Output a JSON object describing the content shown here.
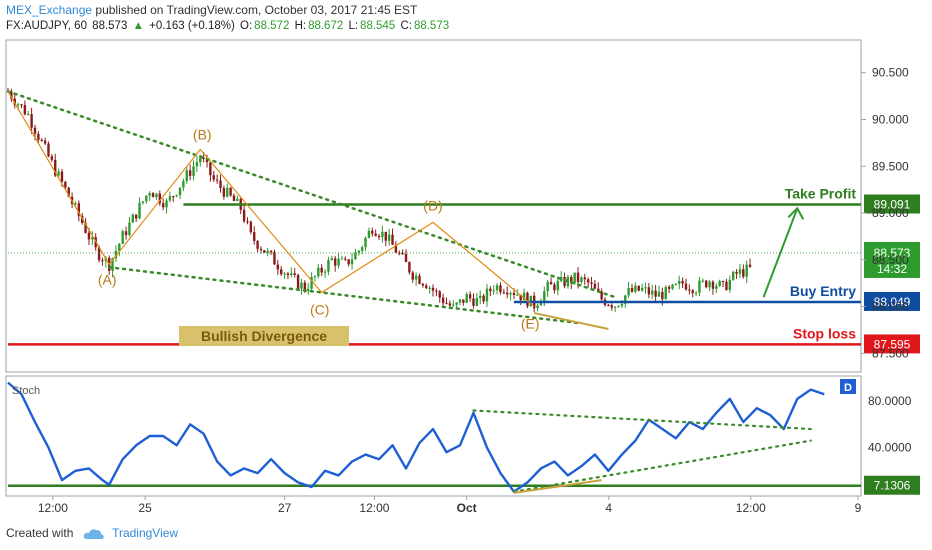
{
  "header": {
    "author": "MEX_Exchange",
    "published": "published on TradingView.com, October 03, 2017 21:45 EST",
    "symbol": "FX:AUDJPY, 60",
    "last": "88.573",
    "change": "+0.163 (+0.18%)",
    "open_label": "O:",
    "open": "88.572",
    "high_label": "H:",
    "high": "88.672",
    "low_label": "L:",
    "low": "88.545",
    "close_label": "C:",
    "close": "88.573"
  },
  "footer": {
    "created_with": "Created with",
    "brand": "TradingView"
  },
  "colors": {
    "up": "#2e9b2e",
    "down": "#8b1a1a",
    "green": "#2e7d1f",
    "blue": "#0f4da1",
    "red": "#e0161b",
    "orange": "#e08a12",
    "stoch": "#1f5fd6",
    "price_tag": "#2e9b2e"
  },
  "chart_data": [
    {
      "type": "candlestick",
      "title": "FX:AUDJPY, 60",
      "ylim": [
        87.3,
        90.85
      ],
      "y_ticks": [
        "90.500",
        "90.000",
        "89.500",
        "89.000",
        "88.500",
        "88.000",
        "87.500"
      ],
      "x_ticks": [
        "12:00",
        "25",
        "27",
        "12:00",
        "Oct",
        "4",
        "12:00",
        "9"
      ],
      "close_path": [
        [
          0,
          90.3
        ],
        [
          6,
          90.05
        ],
        [
          12,
          89.6
        ],
        [
          17,
          89.25
        ],
        [
          22,
          88.9
        ],
        [
          26,
          88.6
        ],
        [
          30,
          88.45
        ],
        [
          34,
          88.75
        ],
        [
          38,
          89.0
        ],
        [
          42,
          89.25
        ],
        [
          47,
          89.1
        ],
        [
          52,
          89.35
        ],
        [
          57,
          89.6
        ],
        [
          61,
          89.35
        ],
        [
          65,
          89.2
        ],
        [
          69,
          89.05
        ],
        [
          72,
          88.75
        ],
        [
          76,
          88.6
        ],
        [
          80,
          88.45
        ],
        [
          84,
          88.3
        ],
        [
          88,
          88.2
        ],
        [
          92,
          88.35
        ],
        [
          96,
          88.5
        ],
        [
          100,
          88.45
        ],
        [
          104,
          88.6
        ],
        [
          108,
          88.85
        ],
        [
          112,
          88.75
        ],
        [
          116,
          88.55
        ],
        [
          120,
          88.35
        ],
        [
          124,
          88.25
        ],
        [
          128,
          88.1
        ],
        [
          132,
          87.98
        ],
        [
          136,
          88.1
        ],
        [
          140,
          88.05
        ],
        [
          144,
          88.22
        ],
        [
          148,
          88.2
        ],
        [
          152,
          88.12
        ],
        [
          156,
          88.02
        ],
        [
          160,
          88.2
        ],
        [
          164,
          88.25
        ],
        [
          168,
          88.3
        ],
        [
          172,
          88.25
        ],
        [
          176,
          88.08
        ],
        [
          180,
          88.02
        ],
        [
          184,
          88.15
        ],
        [
          188,
          88.18
        ],
        [
          192,
          88.12
        ],
        [
          196,
          88.15
        ],
        [
          200,
          88.25
        ],
        [
          204,
          88.2
        ],
        [
          208,
          88.28
        ],
        [
          212,
          88.2
        ],
        [
          216,
          88.35
        ],
        [
          220,
          88.4
        ]
      ],
      "levels": [
        {
          "label": "Take Profit",
          "value": 89.091,
          "color": "#2e7d1f"
        },
        {
          "label": "Buy Entry",
          "value": 88.049,
          "color": "#0f4da1"
        },
        {
          "label": "Stop loss",
          "value": 87.595,
          "color": "#e0161b"
        }
      ],
      "current": {
        "value": "88.573",
        "countdown": "14:32"
      },
      "waves": [
        {
          "label": "(A)",
          "t": 30,
          "value": 88.45
        },
        {
          "label": "(B)",
          "t": 57,
          "value": 89.68
        },
        {
          "label": "(C)",
          "t": 93,
          "value": 88.15
        },
        {
          "label": "(D)",
          "t": 126,
          "value": 88.9
        },
        {
          "label": "(E)",
          "t": 156,
          "value": 88.0
        }
      ],
      "annotations": [
        {
          "text": "Bullish Divergence"
        }
      ]
    },
    {
      "type": "line",
      "series": [
        {
          "name": "Stoch"
        }
      ],
      "ylim": [
        0,
        100
      ],
      "y_ticks": [
        "80.0000",
        "40.0000"
      ],
      "level": {
        "value": "7.1306"
      },
      "badge": "D",
      "points": [
        [
          0,
          96
        ],
        [
          4,
          86
        ],
        [
          8,
          62
        ],
        [
          12,
          40
        ],
        [
          16,
          12
        ],
        [
          20,
          20
        ],
        [
          24,
          22
        ],
        [
          28,
          12
        ],
        [
          30,
          8
        ],
        [
          34,
          30
        ],
        [
          38,
          42
        ],
        [
          42,
          50
        ],
        [
          46,
          50
        ],
        [
          50,
          42
        ],
        [
          54,
          60
        ],
        [
          58,
          52
        ],
        [
          62,
          28
        ],
        [
          66,
          16
        ],
        [
          70,
          22
        ],
        [
          74,
          18
        ],
        [
          78,
          30
        ],
        [
          82,
          18
        ],
        [
          86,
          10
        ],
        [
          90,
          6
        ],
        [
          94,
          20
        ],
        [
          98,
          16
        ],
        [
          102,
          28
        ],
        [
          106,
          34
        ],
        [
          110,
          30
        ],
        [
          114,
          42
        ],
        [
          118,
          22
        ],
        [
          122,
          44
        ],
        [
          126,
          56
        ],
        [
          130,
          36
        ],
        [
          134,
          42
        ],
        [
          138,
          70
        ],
        [
          142,
          40
        ],
        [
          146,
          18
        ],
        [
          150,
          2
        ],
        [
          154,
          10
        ],
        [
          158,
          22
        ],
        [
          162,
          28
        ],
        [
          166,
          16
        ],
        [
          170,
          24
        ],
        [
          174,
          34
        ],
        [
          178,
          20
        ],
        [
          182,
          34
        ],
        [
          186,
          46
        ],
        [
          190,
          64
        ],
        [
          194,
          56
        ],
        [
          198,
          48
        ],
        [
          202,
          62
        ],
        [
          206,
          56
        ],
        [
          210,
          70
        ],
        [
          214,
          82
        ],
        [
          218,
          62
        ],
        [
          222,
          74
        ],
        [
          226,
          68
        ],
        [
          230,
          56
        ],
        [
          234,
          82
        ],
        [
          238,
          90
        ],
        [
          242,
          86
        ]
      ]
    }
  ]
}
